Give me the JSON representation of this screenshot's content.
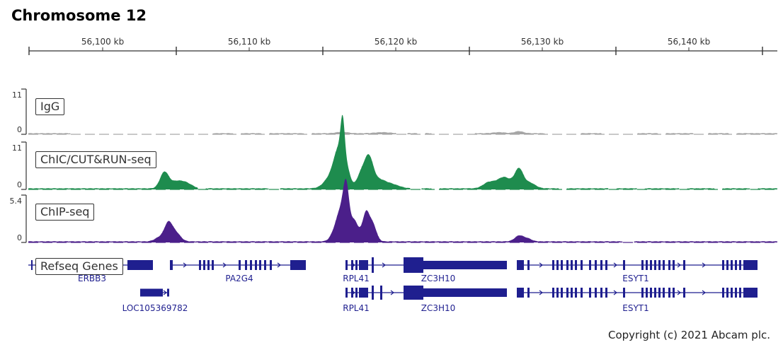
{
  "title": "Chromosome 12",
  "ruler": {
    "ticks": [
      "56,100 kb",
      "56,110 kb",
      "56,120 kb",
      "56,130 kb",
      "56,140 kb"
    ]
  },
  "tracks": [
    {
      "label": "IgG",
      "ymax": "11",
      "ymin": "0",
      "color": "#a6a6a6"
    },
    {
      "label": "ChIC/CUT&RUN-seq",
      "ymax": "11",
      "ymin": "0",
      "color": "#1e8c4e"
    },
    {
      "label": "ChIP-seq",
      "ymax": "5.4",
      "ymin": "0",
      "color": "#4b1f8a"
    }
  ],
  "genes_track": {
    "label": "Refseq Genes",
    "color": "#1f1f8f",
    "genes": [
      "ERBB3",
      "PA2G4",
      "RPL41",
      "ZC3H10",
      "ESYT1",
      "LOC105369782",
      "RPL41",
      "ZC3H10",
      "ESYT1"
    ]
  },
  "copyright": "Copyright (c) 2021 Abcam plc."
}
